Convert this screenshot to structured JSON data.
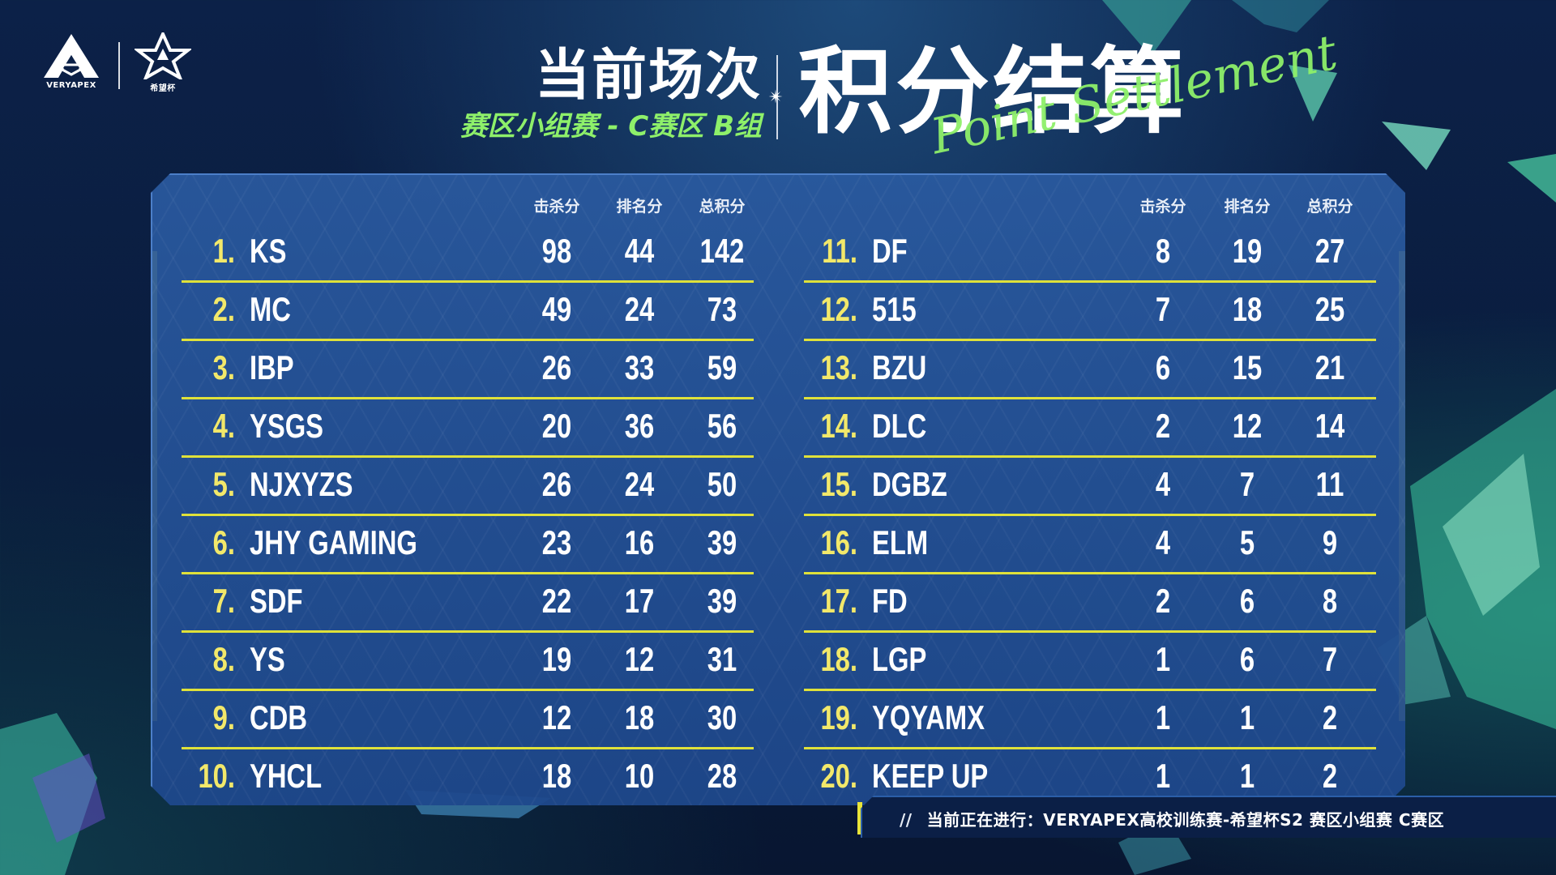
{
  "logos": {
    "left_caption": "VERYAPEX",
    "right_caption": "希望杯"
  },
  "title": {
    "main": "当前场次",
    "sub": "赛区小组赛 - C赛区 B组",
    "big": "积分结算",
    "script": "Point Settlement"
  },
  "headers": {
    "kill": "击杀分",
    "placement": "排名分",
    "total": "总积分"
  },
  "standings_left": [
    {
      "rank": "1.",
      "team": "KS",
      "kill": "98",
      "placement": "44",
      "total": "142"
    },
    {
      "rank": "2.",
      "team": "MC",
      "kill": "49",
      "placement": "24",
      "total": "73"
    },
    {
      "rank": "3.",
      "team": "IBP",
      "kill": "26",
      "placement": "33",
      "total": "59"
    },
    {
      "rank": "4.",
      "team": "YSGS",
      "kill": "20",
      "placement": "36",
      "total": "56"
    },
    {
      "rank": "5.",
      "team": "NJXYZS",
      "kill": "26",
      "placement": "24",
      "total": "50"
    },
    {
      "rank": "6.",
      "team": "JHY GAMING",
      "kill": "23",
      "placement": "16",
      "total": "39"
    },
    {
      "rank": "7.",
      "team": "SDF",
      "kill": "22",
      "placement": "17",
      "total": "39"
    },
    {
      "rank": "8.",
      "team": "YS",
      "kill": "19",
      "placement": "12",
      "total": "31"
    },
    {
      "rank": "9.",
      "team": "CDB",
      "kill": "12",
      "placement": "18",
      "total": "30"
    },
    {
      "rank": "10.",
      "team": "YHCL",
      "kill": "18",
      "placement": "10",
      "total": "28"
    }
  ],
  "standings_right": [
    {
      "rank": "11.",
      "team": "DF",
      "kill": "8",
      "placement": "19",
      "total": "27"
    },
    {
      "rank": "12.",
      "team": "515",
      "kill": "7",
      "placement": "18",
      "total": "25"
    },
    {
      "rank": "13.",
      "team": "BZU",
      "kill": "6",
      "placement": "15",
      "total": "21"
    },
    {
      "rank": "14.",
      "team": "DLC",
      "kill": "2",
      "placement": "12",
      "total": "14"
    },
    {
      "rank": "15.",
      "team": "DGBZ",
      "kill": "4",
      "placement": "7",
      "total": "11"
    },
    {
      "rank": "16.",
      "team": "ELM",
      "kill": "4",
      "placement": "5",
      "total": "9"
    },
    {
      "rank": "17.",
      "team": "FD",
      "kill": "2",
      "placement": "6",
      "total": "8"
    },
    {
      "rank": "18.",
      "team": "LGP",
      "kill": "1",
      "placement": "6",
      "total": "7"
    },
    {
      "rank": "19.",
      "team": "YQYAMX",
      "kill": "1",
      "placement": "1",
      "total": "2"
    },
    {
      "rank": "20.",
      "team": "KEEP UP",
      "kill": "1",
      "placement": "1",
      "total": "2"
    }
  ],
  "ticker": {
    "prefix": "//",
    "text": "当前正在进行：VERYAPEX高校训练赛-希望杯S2  赛区小组赛    C赛区"
  },
  "colors": {
    "accent_yellow": "#e8e43a",
    "accent_green": "#8ef06a",
    "panel_blue": "#2a5aa0"
  }
}
